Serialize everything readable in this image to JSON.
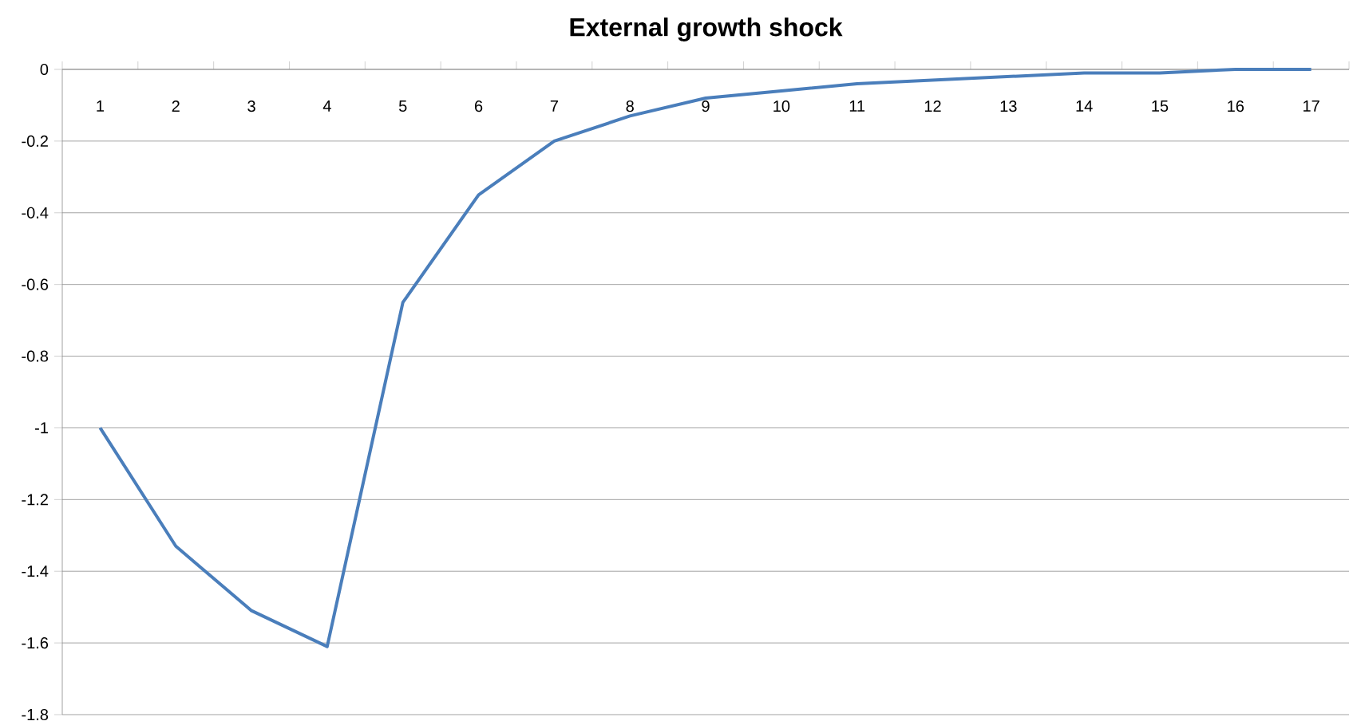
{
  "chart_data": {
    "type": "line",
    "title": "External growth shock",
    "categories": [
      "1",
      "2",
      "3",
      "4",
      "5",
      "6",
      "7",
      "8",
      "9",
      "10",
      "11",
      "12",
      "13",
      "14",
      "15",
      "16",
      "17"
    ],
    "values": [
      -1.0,
      -1.33,
      -1.51,
      -1.61,
      -0.65,
      -0.35,
      -0.2,
      -0.13,
      -0.08,
      -0.06,
      -0.04,
      -0.03,
      -0.02,
      -0.01,
      -0.01,
      0,
      0
    ],
    "color": "#4a7ebb",
    "ylim": [
      -1.8,
      0
    ],
    "yticks": [
      -1.8,
      -1.6,
      -1.4,
      -1.2,
      -1,
      -0.8,
      -0.6,
      -0.4,
      -0.2,
      0
    ],
    "grid": "y",
    "marker": "none",
    "line_style": "solid"
  }
}
